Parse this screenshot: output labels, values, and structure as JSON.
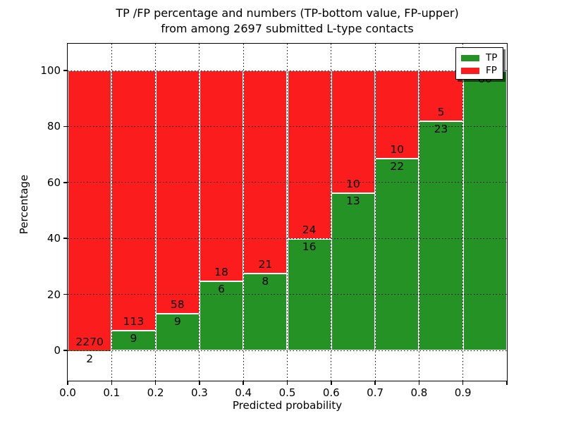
{
  "title": {
    "line1": "TP /FP percentage and numbers (TP-bottom value, FP-upper)",
    "line2": "from among 2697 submitted L-type contacts"
  },
  "axes": {
    "xlabel": "Predicted probability",
    "ylabel": "Percentage",
    "x_tick_labels": [
      "0.0",
      "0.1",
      "0.2",
      "0.3",
      "0.4",
      "0.5",
      "0.6",
      "0.7",
      "0.8",
      "0.9"
    ],
    "y_tick_labels": [
      "0",
      "20",
      "40",
      "60",
      "80",
      "100"
    ],
    "y_tick_values": [
      0,
      20,
      40,
      60,
      80,
      100
    ]
  },
  "legend": {
    "items": [
      {
        "label": "TP",
        "color": "#259225"
      },
      {
        "label": "FP",
        "color": "#fb1d1d"
      }
    ]
  },
  "chart_data": {
    "type": "bar",
    "stacked": true,
    "normalized_to_percent": true,
    "title": "TP /FP percentage and numbers (TP-bottom value, FP-upper) from among 2697 submitted L-type contacts",
    "xlabel": "Predicted probability",
    "ylabel": "Percentage",
    "x_bins": [
      "0.0-0.1",
      "0.1-0.2",
      "0.2-0.3",
      "0.3-0.4",
      "0.4-0.5",
      "0.5-0.6",
      "0.6-0.7",
      "0.7-0.8",
      "0.8-0.9",
      "0.9-1.0"
    ],
    "bin_starts": [
      0.0,
      0.1,
      0.2,
      0.3,
      0.4,
      0.5,
      0.6,
      0.7,
      0.8,
      0.9
    ],
    "series": [
      {
        "name": "TP",
        "color": "#259225",
        "counts": [
          2,
          9,
          9,
          6,
          8,
          16,
          13,
          22,
          23,
          60
        ],
        "percent": [
          0.09,
          7.38,
          13.43,
          25.0,
          27.59,
          40.0,
          56.52,
          68.75,
          82.14,
          100.0
        ]
      },
      {
        "name": "FP",
        "color": "#fb1d1d",
        "counts": [
          2270,
          113,
          58,
          18,
          21,
          24,
          10,
          10,
          5,
          0
        ],
        "percent": [
          99.91,
          92.62,
          86.57,
          75.0,
          72.41,
          60.0,
          43.48,
          31.25,
          17.86,
          0.0
        ]
      }
    ],
    "total_contacts": 2697,
    "xlim": [
      0.0,
      1.0
    ],
    "ylim": [
      -11,
      110
    ],
    "grid": true,
    "grid_style": "dotted",
    "legend_position": "upper right"
  }
}
